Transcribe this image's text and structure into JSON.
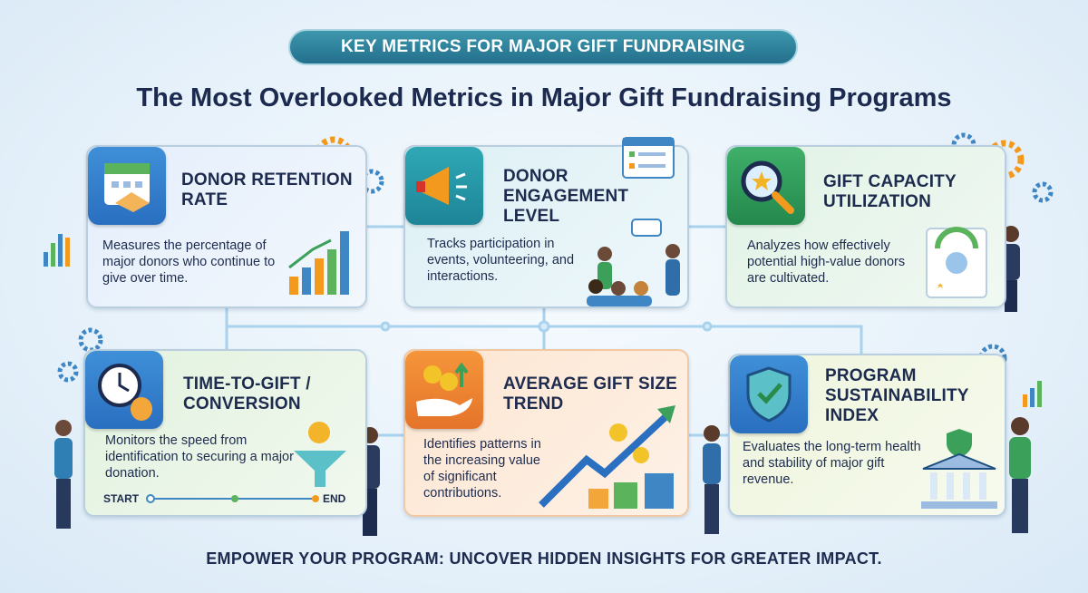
{
  "banner": "KEY METRICS FOR MAJOR GIFT FUNDRAISING",
  "title": "The Most Overlooked Metrics in Major Gift Fundraising Programs",
  "cards": [
    {
      "title": "DONOR RETENTION RATE",
      "description": "Measures the percentage of major donors who continue to give over time."
    },
    {
      "title": "DONOR ENGAGEMENT LEVEL",
      "description": "Tracks participation in events, volunteering, and interactions."
    },
    {
      "title": "GIFT CAPACITY UTILIZATION",
      "description": "Analyzes how effectively potential high-value donors are cultivated."
    },
    {
      "title": "TIME-TO-GIFT / CONVERSION",
      "description": "Monitors the speed from identification to securing a major donation.",
      "timeline": {
        "start": "START",
        "end": "END"
      }
    },
    {
      "title": "AVERAGE GIFT SIZE TREND",
      "description": "Identifies patterns in the increasing value of significant contributions."
    },
    {
      "title": "PROGRAM SUSTAINABILITY INDEX",
      "description": "Evaluates the long-term health and stability of major gift revenue."
    }
  ],
  "footer": "EMPOWER YOUR PROGRAM: UNCOVER HIDDEN INSIGHTS FOR GREATER IMPACT."
}
